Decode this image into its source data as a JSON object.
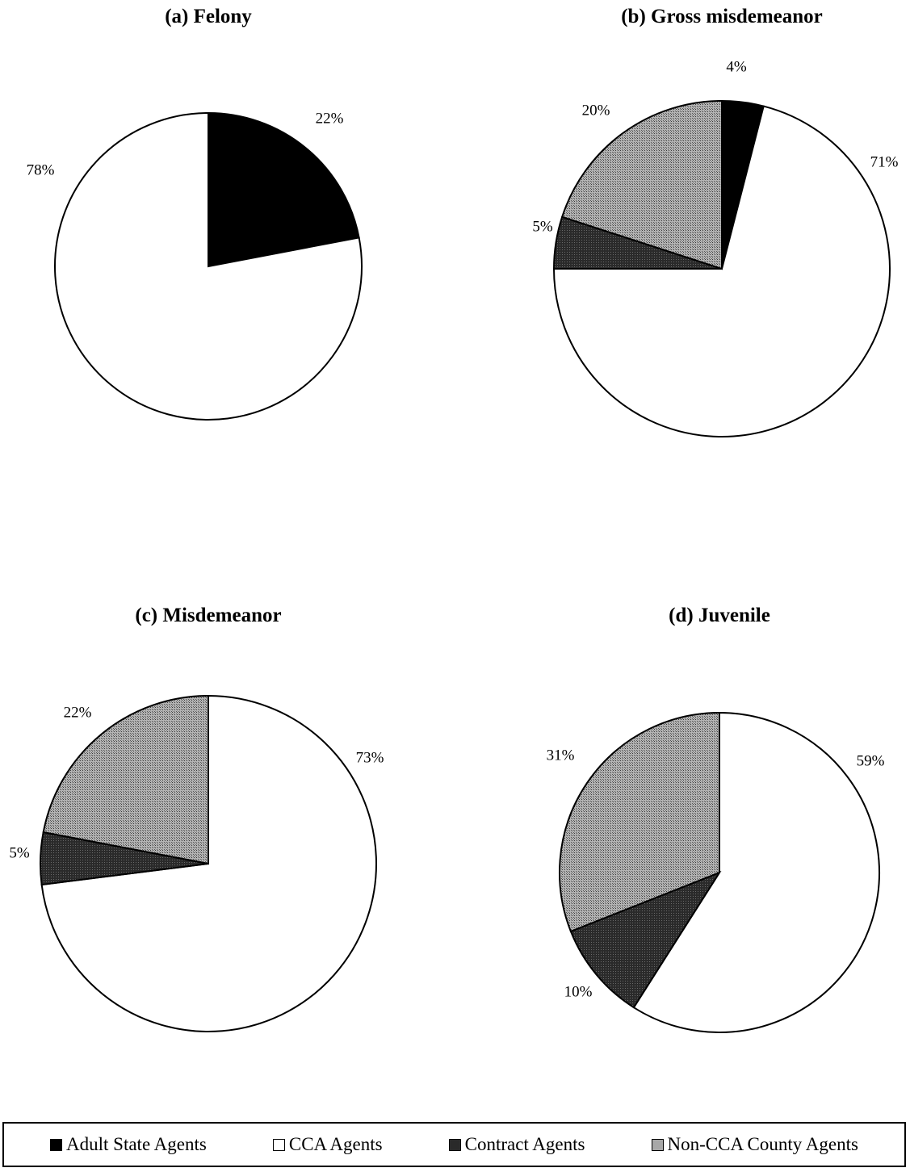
{
  "patterns": {
    "adult": "#000000",
    "cca": "#ffffff",
    "contract": "#1a1a1a",
    "noncca": "#9a9a9a"
  },
  "legend": [
    {
      "key": "adult",
      "label": "Adult State Agents"
    },
    {
      "key": "cca",
      "label": "CCA Agents"
    },
    {
      "key": "contract",
      "label": "Contract Agents"
    },
    {
      "key": "noncca",
      "label": "Non-CCA County Agents"
    }
  ],
  "chart_data": [
    {
      "type": "pie",
      "title": "(a) Felony",
      "slices": [
        {
          "key": "adult",
          "name": "Adult State Agents",
          "value": 22,
          "label": "22%"
        },
        {
          "key": "cca",
          "name": "CCA Agents",
          "value": 78,
          "label": "78%"
        }
      ]
    },
    {
      "type": "pie",
      "title": "(b) Gross misdemeanor",
      "slices": [
        {
          "key": "adult",
          "name": "Adult State Agents",
          "value": 4,
          "label": "4%"
        },
        {
          "key": "cca",
          "name": "CCA Agents",
          "value": 71,
          "label": "71%"
        },
        {
          "key": "contract",
          "name": "Contract Agents",
          "value": 5,
          "label": "5%"
        },
        {
          "key": "noncca",
          "name": "Non-CCA County Agents",
          "value": 20,
          "label": "20%"
        }
      ]
    },
    {
      "type": "pie",
      "title": "(c) Misdemeanor",
      "slices": [
        {
          "key": "adult",
          "name": "Adult State Agents",
          "value": 0,
          "label": ""
        },
        {
          "key": "cca",
          "name": "CCA Agents",
          "value": 73,
          "label": "73%"
        },
        {
          "key": "contract",
          "name": "Contract Agents",
          "value": 5,
          "label": "5%"
        },
        {
          "key": "noncca",
          "name": "Non-CCA County Agents",
          "value": 22,
          "label": "22%"
        }
      ]
    },
    {
      "type": "pie",
      "title": "(d) Juvenile",
      "slices": [
        {
          "key": "cca",
          "name": "CCA Agents",
          "value": 59,
          "label": "59%"
        },
        {
          "key": "contract",
          "name": "Contract Agents",
          "value": 10,
          "label": "10%"
        },
        {
          "key": "noncca",
          "name": "Non-CCA County Agents",
          "value": 31,
          "label": "31%"
        }
      ]
    }
  ]
}
